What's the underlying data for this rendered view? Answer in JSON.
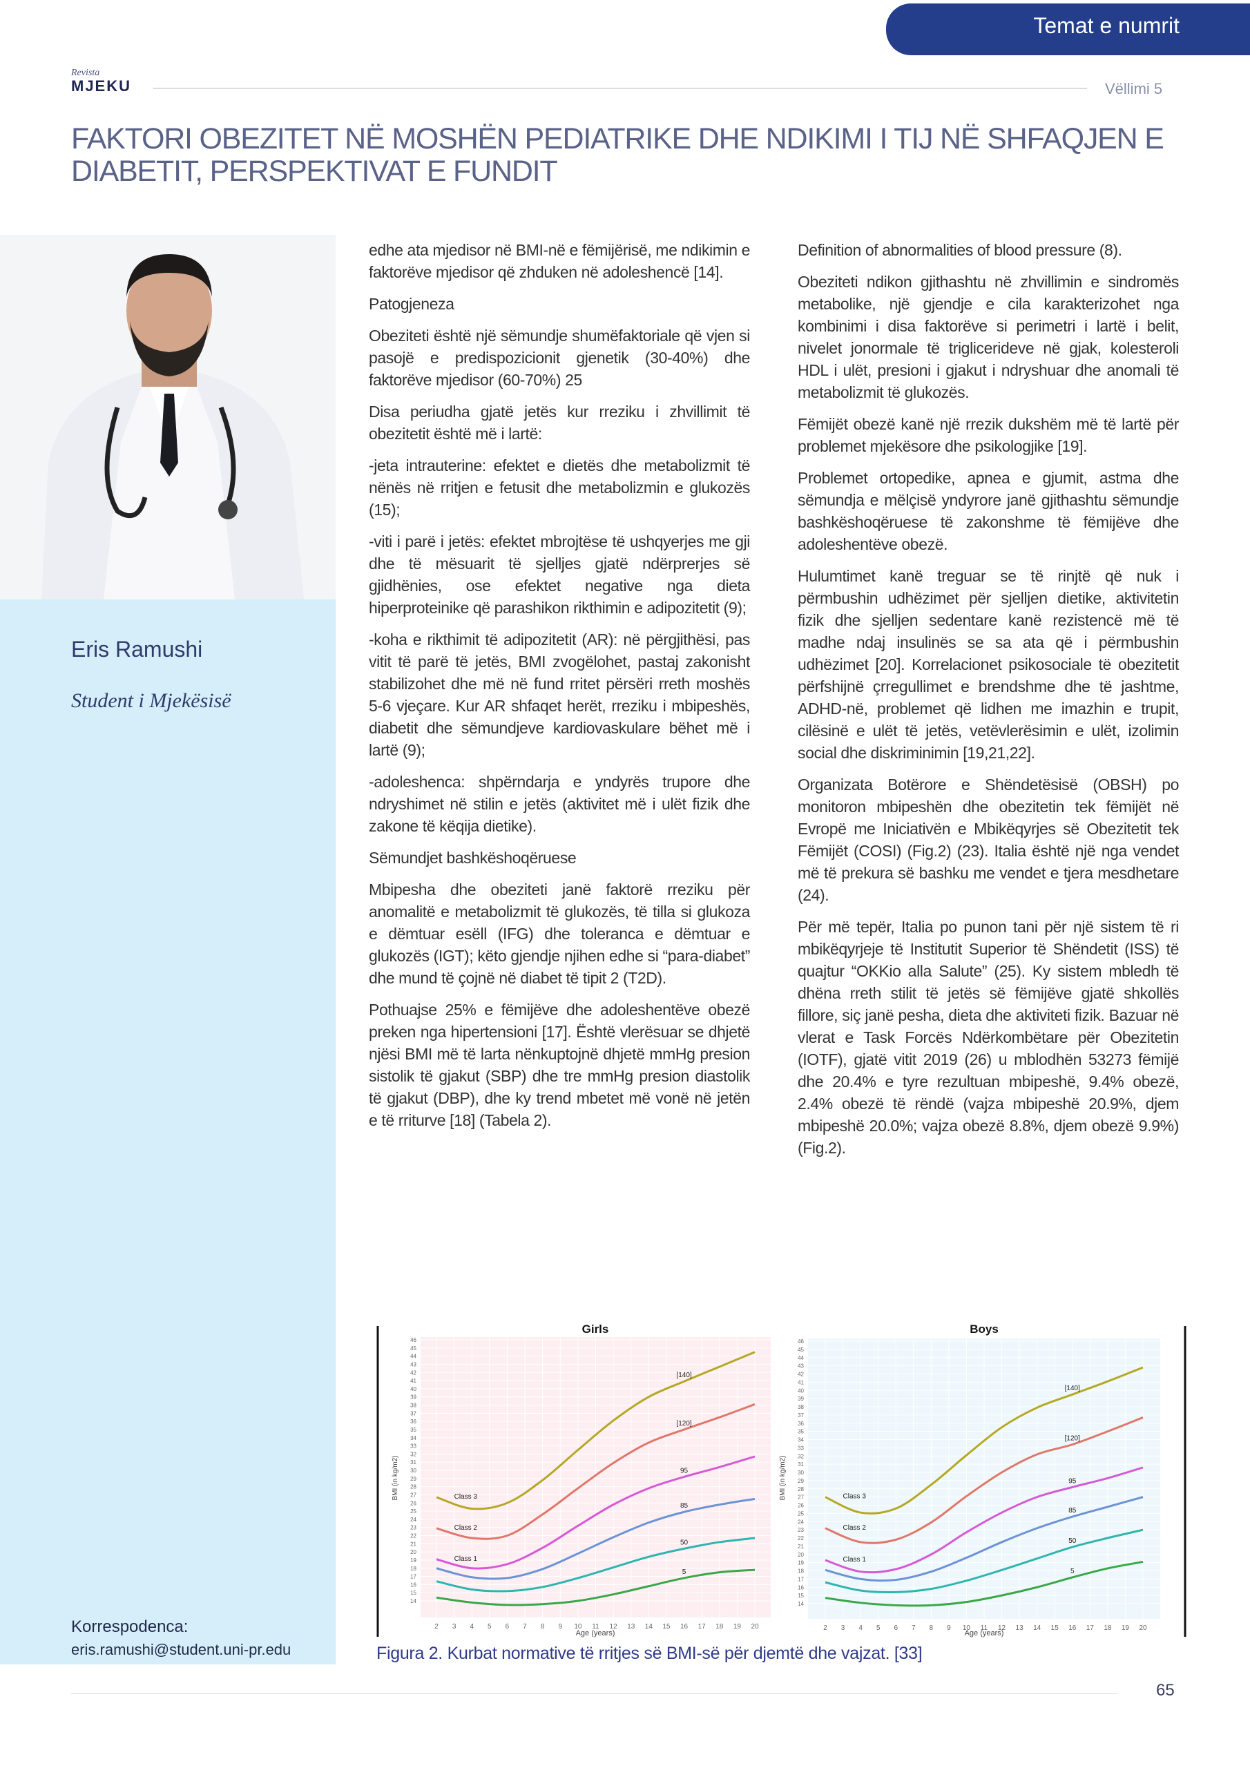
{
  "header": {
    "section_tab": "Temat e numrit",
    "logo_top": "Revista",
    "logo_main": "MJEKU",
    "volume": "Vëllimi 5"
  },
  "article": {
    "title": "FAKTORI OBEZITET NË MOSHËN PEDIATRIKE DHE NDIKIMI I TIJ NË SHFAQJEN E DIABETIT, PERSPEKTIVAT E FUNDIT"
  },
  "author": {
    "name": "Eris Ramushi",
    "role": "Student i Mjekësisë",
    "correspondence_label": "Korrespodenca:",
    "email": "eris.ramushi@student.uni-pr.edu"
  },
  "columns": [
    [
      "edhe ata mjedisor në BMI-në e fëmijërisë, me ndikimin e faktorëve mjedisor që zhduken në adoleshencë [14].",
      "Patogjeneza",
      "Obeziteti është një sëmundje shumëfaktoriale që vjen si pasojë e predispozicionit gjenetik (30-40%) dhe faktorëve mjedisor (60-70%) 25",
      "Disa periudha gjatë jetës kur rreziku i zhvillimit të obezitetit është më i lartë:",
      "-jeta intrauterine: efektet e dietës dhe metabolizmit të nënës në rritjen e fetusit dhe metabolizmin e glukozës (15);",
      "-viti i parë i jetës: efektet mbrojtëse të ushqyerjes me gji dhe të mësuarit të sjelljes gjatë ndërprerjes së gjidhënies, ose efektet negative nga dieta hiperproteinike që parashikon rikthimin e adipozitetit (9);",
      "-koha e rikthimit të adipozitetit (AR): në përgjithësi, pas vitit të parë të jetës, BMI zvogëlohet, pastaj zakonisht stabilizohet dhe më në fund rritet përsëri rreth moshës 5-6 vjeçare. Kur AR shfaqet herët, rreziku i mbipeshës, diabetit dhe sëmundjeve kardiovaskulare bëhet më i lartë (9);",
      "-adoleshenca: shpërndarja e yndyrës trupore dhe ndryshimet në stilin e jetës (aktivitet më i ulët fizik dhe zakone të këqija dietike).",
      "Sëmundjet bashkëshoqëruese",
      "Mbipesha dhe obeziteti janë faktorë rreziku për anomalitë e metabolizmit të glukozës, të tilla si glukoza e dëmtuar esëll (IFG) dhe toleranca e dëmtuar e glukozës (IGT); këto gjendje njihen edhe si “para-diabet” dhe mund të çojnë në diabet të tipit 2 (T2D).",
      "Pothuajse 25% e fëmijëve dhe adoleshentëve obezë preken nga hipertensioni [17]. Është vlerësuar se dhjetë njësi BMI më të larta nënkuptojnë dhjetë mmHg presion sistolik të gjakut (SBP) dhe tre mmHg presion diastolik të gjakut (DBP), dhe ky trend mbetet më vonë në jetën e të rriturve [18] (Tabela 2)."
    ],
    [
      "Definition of abnormalities of blood pressure (8).",
      "Obeziteti ndikon gjithashtu në zhvillimin e sindromës metabolike, një gjendje e cila karakterizohet nga kombinimi i disa faktorëve si perimetri i lartë i belit, nivelet jonormale të triglicerideve në gjak, kolesteroli HDL i ulët, presioni i gjakut i ndryshuar dhe anomali të metabolizmit të glukozës.",
      "Fëmijët obezë kanë një rrezik dukshëm më të lartë për problemet mjekësore dhe psikologjike [19].",
      "Problemet ortopedike, apnea e gjumit, astma dhe sëmundja e mëlçisë yndyrore janë gjithashtu sëmundje bashkëshoqëruese të zakonshme të fëmijëve dhe adoleshentëve obezë.",
      "Hulumtimet kanë treguar se të rinjtë që nuk i përmbushin udhëzimet për sjelljen dietike, aktivitetin fizik dhe sjelljen sedentare kanë rezistencë më të madhe ndaj insulinës se sa ata që i përmbushin udhëzimet [20]. Korrelacionet psikosociale të obezitetit përfshijnë çrregullimet e brendshme dhe të jashtme, ADHD-në, problemet që lidhen me imazhin e trupit, cilësinë e ulët të jetës, vetëvlerësimin e ulët, izolimin social dhe diskriminimin [19,21,22].",
      "Organizata Botërore e Shëndetësisë (OBSH) po monitoron mbipeshën dhe obezitetin tek fëmijët në Evropë me Iniciativën e Mbikëqyrjes së Obezitetit tek Fëmijët (COSI) (Fig.2) (23). Italia është një nga vendet më të prekura së bashku me vendet e tjera mesdhetare (24).",
      "Për më tepër, Italia po punon tani për një sistem të ri mbikëqyrjeje të Institutit Superior të Shëndetit (ISS) të quajtur “OKKio alla Salute” (25). Ky sistem mbledh të dhëna rreth stilit të jetës së fëmijëve gjatë shkollës fillore, siç janë pesha, dieta dhe aktiviteti fizik. Bazuar në vlerat e Task Forcës Ndërkombëtare për Obezitetin (IOTF), gjatë vitit 2019 (26) u mblodhën 53273 fëmijë dhe 20.4% e tyre rezultuan mbipeshë, 9.4% obezë, 2.4% obezë të rëndë (vajza mbipeshë 20.9%, djem mbipeshë 20.0%; vajza obezë 8.8%, djem obezë 9.9%) (Fig.2)."
    ]
  ],
  "figure": {
    "caption": "Figura 2. Kurbat normative të rritjes së BMI-së për djemtë dhe vajzat. [33]"
  },
  "footer": {
    "page_number": "65"
  },
  "colors": {
    "accent": "#243e8c",
    "title": "#5a6287",
    "panel": "#d6eef9",
    "girls_bg": "#fdeef2",
    "boys_bg": "#eef7fb"
  },
  "chart_data": [
    {
      "type": "line",
      "title": "Girls",
      "xlabel": "Age (years)",
      "ylabel": "BMI (in kg/m2)",
      "xlim": [
        2,
        20
      ],
      "ylim": [
        14,
        46
      ],
      "grid": true,
      "x": [
        2,
        4,
        6,
        8,
        10,
        12,
        14,
        16,
        18,
        20
      ],
      "series": [
        {
          "name": "[140]",
          "color": "#b5a824",
          "values": [
            26.7,
            25.3,
            26.0,
            28.8,
            32.5,
            36.1,
            39.0,
            40.9,
            42.7,
            44.5
          ]
        },
        {
          "name": "[120]",
          "color": "#e0776a",
          "values": [
            22.9,
            21.7,
            22.0,
            24.6,
            27.8,
            30.9,
            33.4,
            35.0,
            36.5,
            38.1
          ]
        },
        {
          "name": "95",
          "color": "#d65ad6",
          "values": [
            19.1,
            18.0,
            18.5,
            20.5,
            23.2,
            25.8,
            27.8,
            29.2,
            30.4,
            31.7
          ]
        },
        {
          "name": "85",
          "color": "#6b93d6",
          "values": [
            18.0,
            16.9,
            16.8,
            17.9,
            19.8,
            21.8,
            23.6,
            24.9,
            25.8,
            26.5
          ]
        },
        {
          "name": "50",
          "color": "#2fb5b0",
          "values": [
            16.4,
            15.4,
            15.2,
            15.7,
            16.8,
            18.1,
            19.4,
            20.4,
            21.2,
            21.7
          ]
        },
        {
          "name": "5",
          "color": "#3aa84a",
          "values": [
            14.4,
            13.8,
            13.5,
            13.6,
            14.0,
            14.8,
            15.8,
            16.8,
            17.5,
            17.8
          ]
        }
      ],
      "annotations": [
        "Class 3",
        "Class 2",
        "Class 1"
      ]
    },
    {
      "type": "line",
      "title": "Boys",
      "xlabel": "Age (years)",
      "ylabel": "BMI (in kg/m2)",
      "xlim": [
        2,
        20
      ],
      "ylim": [
        14,
        46
      ],
      "grid": true,
      "x": [
        2,
        4,
        6,
        8,
        10,
        12,
        14,
        16,
        18,
        20
      ],
      "series": [
        {
          "name": "[140]",
          "color": "#b5a824",
          "values": [
            27.0,
            25.1,
            25.6,
            28.5,
            32.1,
            35.5,
            37.9,
            39.5,
            41.1,
            42.8
          ]
        },
        {
          "name": "[120]",
          "color": "#e0776a",
          "values": [
            23.2,
            21.5,
            21.8,
            23.9,
            27.1,
            30.0,
            32.2,
            33.4,
            35.0,
            36.7
          ]
        },
        {
          "name": "95",
          "color": "#d65ad6",
          "values": [
            19.3,
            17.9,
            18.2,
            20.0,
            22.7,
            25.1,
            27.0,
            28.2,
            29.3,
            30.6
          ]
        },
        {
          "name": "85",
          "color": "#6b93d6",
          "values": [
            18.1,
            17.0,
            16.9,
            17.9,
            19.6,
            21.5,
            23.2,
            24.6,
            25.8,
            27.0
          ]
        },
        {
          "name": "50",
          "color": "#2fb5b0",
          "values": [
            16.6,
            15.6,
            15.4,
            15.8,
            16.8,
            18.1,
            19.5,
            20.9,
            22.0,
            23.0
          ]
        },
        {
          "name": "5",
          "color": "#3aa84a",
          "values": [
            14.7,
            14.1,
            13.8,
            13.8,
            14.2,
            15.0,
            16.0,
            17.2,
            18.3,
            19.1
          ]
        }
      ],
      "annotations": [
        "Class 3",
        "Class 2",
        "Class 1"
      ]
    }
  ]
}
